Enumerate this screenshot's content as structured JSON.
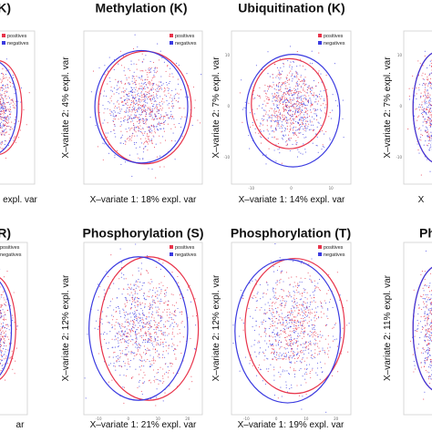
{
  "chart_data": [
    {
      "type": "scatter",
      "title": "n (K)",
      "xlabel": "expl. var",
      "ylabel": "",
      "legend": [
        "positives",
        "negatives"
      ],
      "legend_placement": "top-right",
      "colors": {
        "positives": "#e8334a",
        "negatives": "#3a3ae0"
      },
      "x_ticks": [],
      "y_ticks": [],
      "points_note_cluster_center": [
        0,
        0
      ],
      "series": [
        {
          "name": "positives",
          "center": [
            0.6,
            0.0
          ],
          "spread": [
            2.5,
            2.5
          ]
        },
        {
          "name": "negatives",
          "center": [
            -0.6,
            0.0
          ],
          "spread": [
            2.5,
            2.5
          ]
        }
      ]
    },
    {
      "type": "scatter",
      "title": "Methylation (K)",
      "xlabel": "X–variate 1: 18% expl. var",
      "ylabel": "X–variate 2: 4% expl. var",
      "legend": [
        "positives",
        "negatives"
      ],
      "legend_placement": "top-right",
      "colors": {
        "positives": "#e8334a",
        "negatives": "#3a3ae0"
      },
      "x_ticks": [],
      "y_ticks": [],
      "series": [
        {
          "name": "positives",
          "center": [
            0.3,
            0.0
          ],
          "spread": [
            3.2,
            3.0
          ]
        },
        {
          "name": "negatives",
          "center": [
            -0.3,
            0.1
          ],
          "spread": [
            3.2,
            3.0
          ]
        }
      ]
    },
    {
      "type": "scatter",
      "title": "Ubiquitination (K)",
      "xlabel": "X–variate 1: 14% expl. var",
      "ylabel": "X–variate 2: 7% expl. var",
      "legend": [
        "positives",
        "negatives"
      ],
      "legend_placement": "top-right",
      "colors": {
        "positives": "#e8334a",
        "negatives": "#3a3ae0"
      },
      "x_ticks": [
        "-10",
        "0",
        "10"
      ],
      "y_ticks": [
        "10",
        "0",
        "-10"
      ],
      "series": [
        {
          "name": "positives",
          "center": [
            -0.3,
            0.5
          ],
          "spread": [
            2.6,
            2.4
          ]
        },
        {
          "name": "negatives",
          "center": [
            0.3,
            -0.4
          ],
          "spread": [
            3.2,
            3.0
          ]
        }
      ]
    },
    {
      "type": "scatter",
      "title": "",
      "xlabel": "X",
      "ylabel": "X–variate 2: 7% expl. var",
      "legend": [],
      "colors": {
        "positives": "#e8334a",
        "negatives": "#3a3ae0"
      },
      "x_ticks": [],
      "y_ticks": [
        "10",
        "0",
        "-10"
      ],
      "series": [
        {
          "name": "positives",
          "center": [
            0.0,
            0.0
          ],
          "spread": [
            3.0,
            3.0
          ]
        },
        {
          "name": "negatives",
          "center": [
            0.0,
            0.0
          ],
          "spread": [
            3.0,
            3.0
          ]
        }
      ]
    },
    {
      "type": "scatter",
      "title": "n (R)",
      "xlabel": "ar",
      "ylabel": "",
      "legend": [
        "positives",
        "negatives"
      ],
      "legend_placement": "top-right",
      "colors": {
        "positives": "#e8334a",
        "negatives": "#3a3ae0"
      },
      "x_ticks": [],
      "y_ticks": [],
      "series": [
        {
          "name": "positives",
          "center": [
            0.6,
            0.0
          ],
          "spread": [
            2.5,
            2.5
          ]
        },
        {
          "name": "negatives",
          "center": [
            -0.6,
            0.0
          ],
          "spread": [
            2.5,
            2.5
          ]
        }
      ]
    },
    {
      "type": "scatter",
      "title": "Phosphorylation (S)",
      "xlabel": "X–variate 1: 21% expl. var",
      "ylabel": "X–variate 2: 12% expl. var",
      "legend": [
        "positives",
        "negatives"
      ],
      "legend_placement": "top-right",
      "colors": {
        "positives": "#e8334a",
        "negatives": "#3a3ae0"
      },
      "x_ticks": [
        "-10",
        "0",
        "10",
        "20"
      ],
      "y_ticks": [],
      "series": [
        {
          "name": "positives",
          "center": [
            1.0,
            0.0
          ],
          "spread": [
            3.4,
            3.4
          ]
        },
        {
          "name": "negatives",
          "center": [
            -0.8,
            0.0
          ],
          "spread": [
            3.4,
            3.4
          ]
        }
      ]
    },
    {
      "type": "scatter",
      "title": "Phosphorylation (T)",
      "xlabel": "X–variate 1: 19% expl. var",
      "ylabel": "X–variate 2: 12% expl. var",
      "legend": [
        "positives",
        "negatives"
      ],
      "legend_placement": "top-right",
      "colors": {
        "positives": "#e8334a",
        "negatives": "#3a3ae0"
      },
      "x_ticks": [
        "-10",
        "0",
        "10",
        "20"
      ],
      "y_ticks": [],
      "series": [
        {
          "name": "positives",
          "center": [
            0.6,
            0.3
          ],
          "spread": [
            3.4,
            3.2
          ]
        },
        {
          "name": "negatives",
          "center": [
            -0.6,
            -0.3
          ],
          "spread": [
            3.6,
            3.4
          ]
        }
      ]
    },
    {
      "type": "scatter",
      "title": "Ph",
      "xlabel": "",
      "ylabel": "X–variate 2: 11% expl. var",
      "legend": [],
      "colors": {
        "positives": "#e8334a",
        "negatives": "#3a3ae0"
      },
      "x_ticks": [],
      "y_ticks": [],
      "series": [
        {
          "name": "positives",
          "center": [
            0.0,
            0.0
          ],
          "spread": [
            3.0,
            3.0
          ]
        },
        {
          "name": "negatives",
          "center": [
            0.0,
            0.0
          ],
          "spread": [
            3.0,
            3.0
          ]
        }
      ]
    }
  ]
}
